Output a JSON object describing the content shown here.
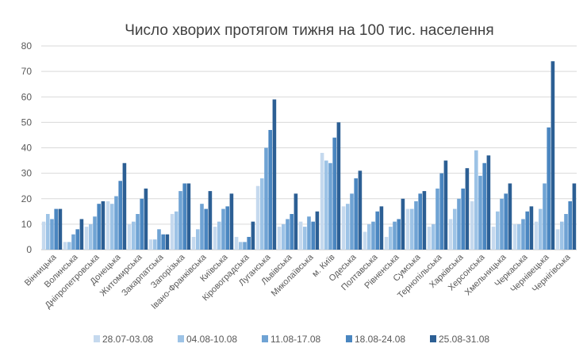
{
  "chart_data": {
    "type": "bar",
    "title": "Число хворих протягом тижня на 100 тис. населення",
    "xlabel": "",
    "ylabel": "",
    "ylim": [
      0,
      80
    ],
    "yticks": [
      0,
      10,
      20,
      30,
      40,
      50,
      60,
      70,
      80
    ],
    "grid": true,
    "legend_position": "bottom",
    "categories": [
      "Вінницька",
      "Волинська",
      "Дніпропетровська",
      "Донецька",
      "Житомирська",
      "Закарпатська",
      "Запорізька",
      "Івано-Франківська",
      "Київська",
      "Кіровоградська",
      "Луганська",
      "Львівська",
      "Миколаївська",
      "м. Київ",
      "Одеська",
      "Полтавська",
      "Рівненська",
      "Сумська",
      "Тернопільська",
      "Харківська",
      "Херсонська",
      "Хмельницька",
      "Черкаська",
      "Чернівецька",
      "Чернігівська"
    ],
    "series": [
      {
        "name": "28.07-03.08",
        "color": "#c5d9ee",
        "values": [
          11,
          3,
          9,
          19,
          10,
          4,
          14,
          5,
          9,
          5,
          25,
          9,
          11,
          38,
          17,
          7,
          5,
          16,
          9,
          12,
          19,
          9,
          10,
          11,
          8
        ]
      },
      {
        "name": "04.08-10.08",
        "color": "#9dc3e6",
        "values": [
          14,
          3,
          10,
          18,
          11,
          4,
          15,
          8,
          11,
          3,
          28,
          10,
          9,
          35,
          18,
          10,
          9,
          16,
          10,
          16,
          39,
          15,
          10,
          16,
          11
        ]
      },
      {
        "name": "11.08-17.08",
        "color": "#6fa3d4",
        "values": [
          12,
          6,
          13,
          21,
          14,
          8,
          23,
          18,
          16,
          3,
          40,
          12,
          13,
          34,
          22,
          11,
          11,
          19,
          24,
          20,
          29,
          20,
          12,
          26,
          14
        ]
      },
      {
        "name": "18.08-24.08",
        "color": "#4a86c0",
        "values": [
          16,
          8,
          18,
          27,
          20,
          6,
          26,
          16,
          17,
          5,
          47,
          14,
          11,
          44,
          28,
          15,
          12,
          22,
          30,
          24,
          34,
          22,
          15,
          48,
          19
        ]
      },
      {
        "name": "25.08-31.08",
        "color": "#2c5f94",
        "values": [
          16,
          12,
          19,
          34,
          24,
          6,
          26,
          23,
          22,
          11,
          59,
          22,
          15,
          50,
          31,
          17,
          20,
          23,
          35,
          32,
          37,
          26,
          17,
          74,
          26
        ]
      }
    ]
  }
}
